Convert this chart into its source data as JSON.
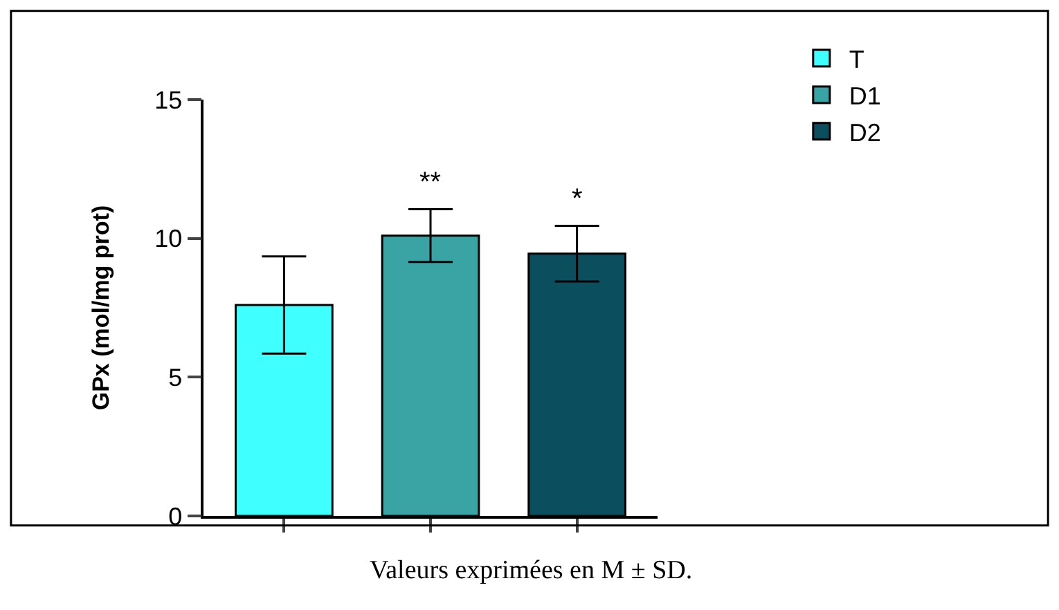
{
  "chart_data": {
    "type": "bar",
    "ylabel": "GPx (mol/mg prot)",
    "categories": [
      null,
      null,
      null
    ],
    "series": [
      {
        "name": "T",
        "color": "#40ffff",
        "values": [
          7.6,
          null,
          null
        ],
        "errors": [
          1.75,
          null,
          null
        ]
      },
      {
        "name": "D1",
        "color": "#3aa3a3",
        "values": [
          null,
          10.1,
          null
        ],
        "errors": [
          null,
          0.95,
          null
        ]
      },
      {
        "name": "D2",
        "color": "#0b4f5e",
        "values": [
          null,
          null,
          9.45
        ],
        "errors": [
          null,
          null,
          1.0
        ]
      }
    ],
    "ylim": [
      0,
      15
    ],
    "yticks": [
      0,
      5,
      10,
      15
    ],
    "grid": false,
    "legend": "top right",
    "tick_labels": "y",
    "annotations": [
      "**",
      "*",
      "Valeurs exprimées en M ± SD."
    ]
  }
}
